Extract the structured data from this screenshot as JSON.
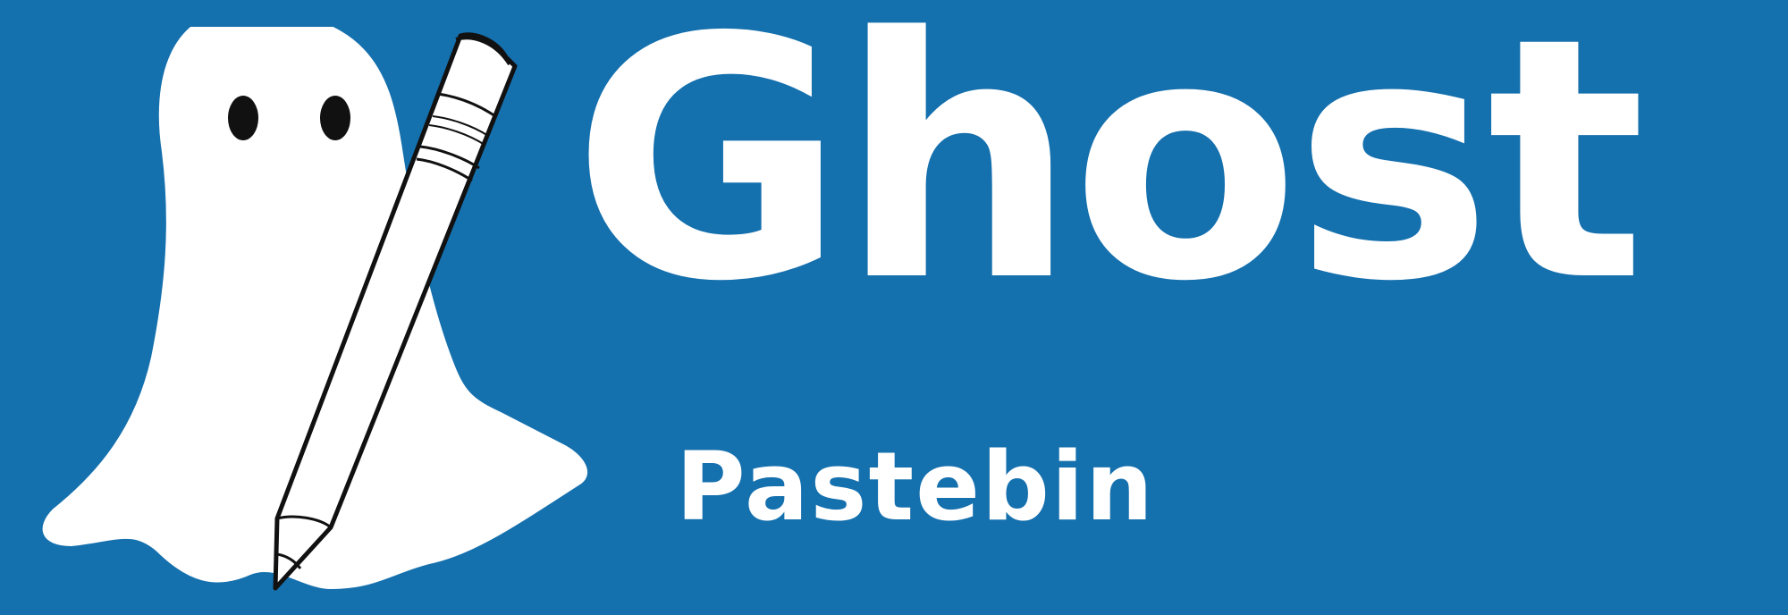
{
  "brand": {
    "name": "Ghost",
    "tagline": "Pastebin",
    "background_color": "#1570ae",
    "text_color": "#ffffff"
  },
  "logo": {
    "icon": "ghost-holding-pencil-icon"
  }
}
